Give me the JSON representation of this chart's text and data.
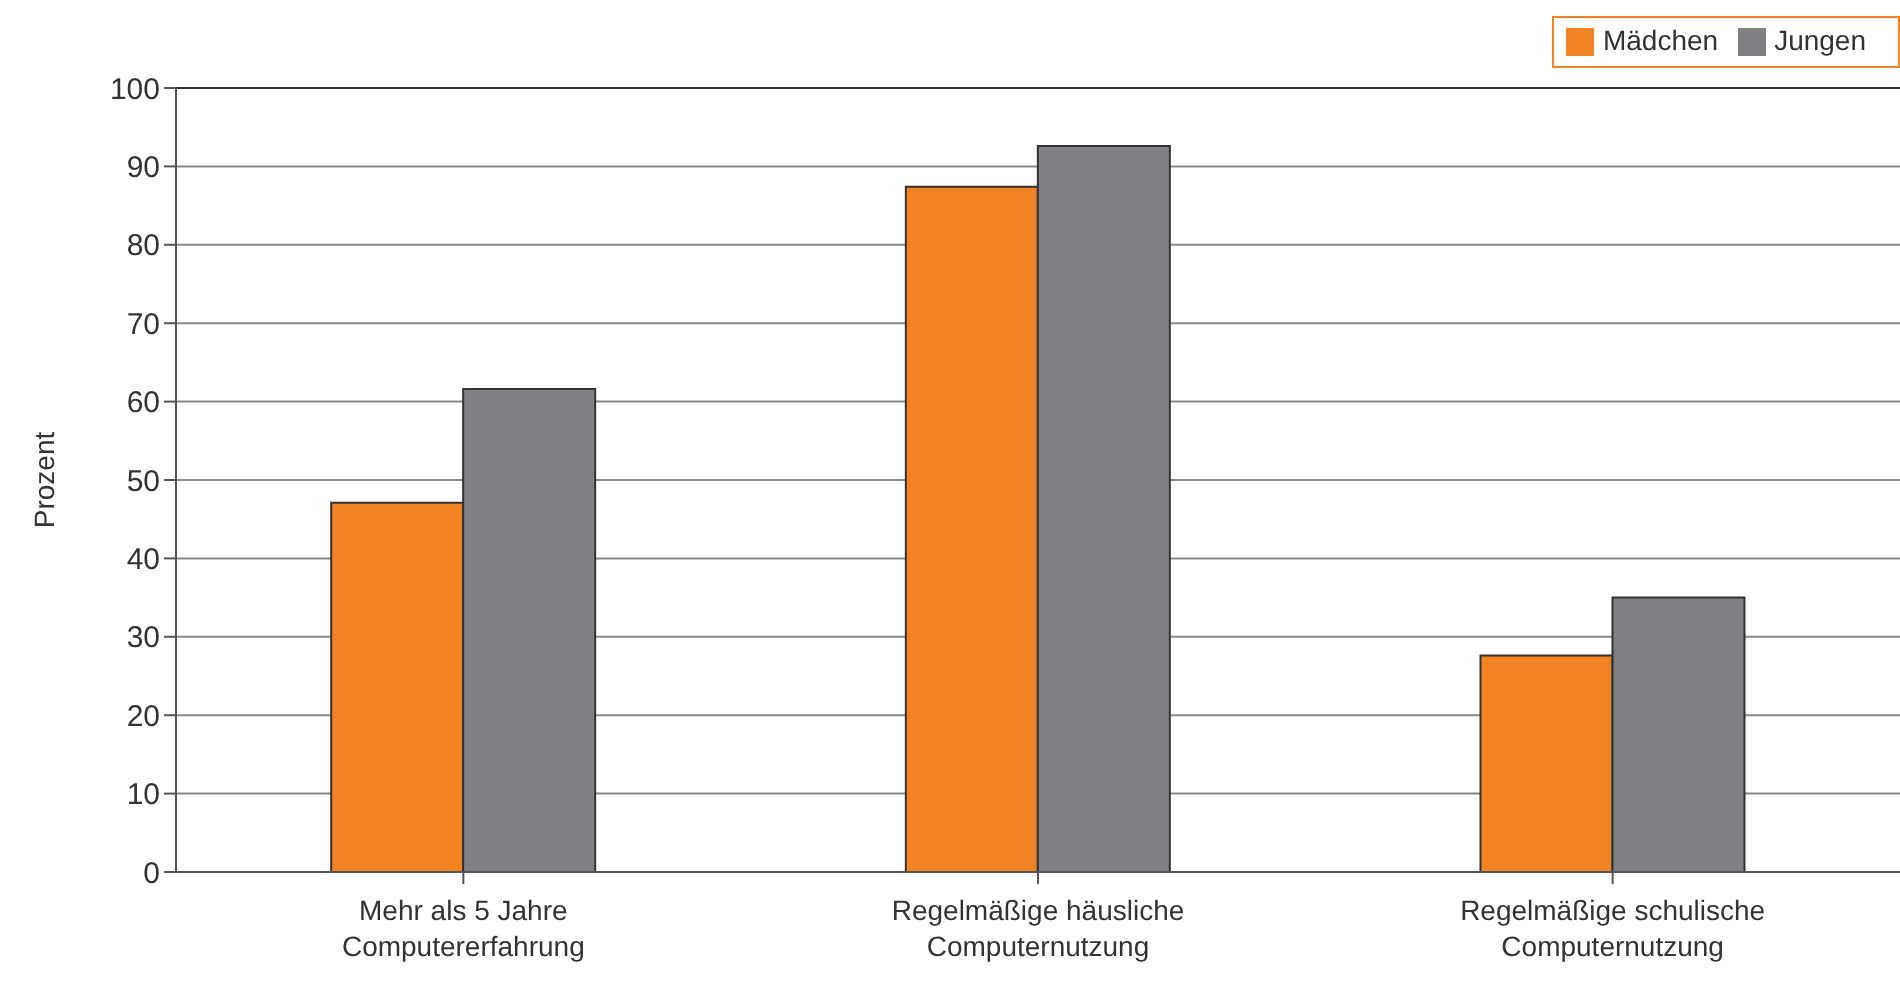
{
  "chart_data": {
    "type": "bar",
    "ylabel": "Prozent",
    "categories": [
      "Mehr als 5 Jahre Computererfahrung",
      "Regelmäßige häusliche Computernutzung",
      "Regelmäßige schulische Computernutzung"
    ],
    "series": [
      {
        "name": "Mädchen",
        "color": "#f28322",
        "values": [
          47.1,
          87.4,
          27.6
        ]
      },
      {
        "name": "Jungen",
        "color": "#808184",
        "values": [
          61.6,
          92.6,
          35.0
        ]
      }
    ],
    "ylim": [
      0,
      100
    ],
    "yticks": [
      0,
      10,
      20,
      30,
      40,
      50,
      60,
      70,
      80,
      90,
      100
    ],
    "grid": "y",
    "legend": "top right"
  }
}
